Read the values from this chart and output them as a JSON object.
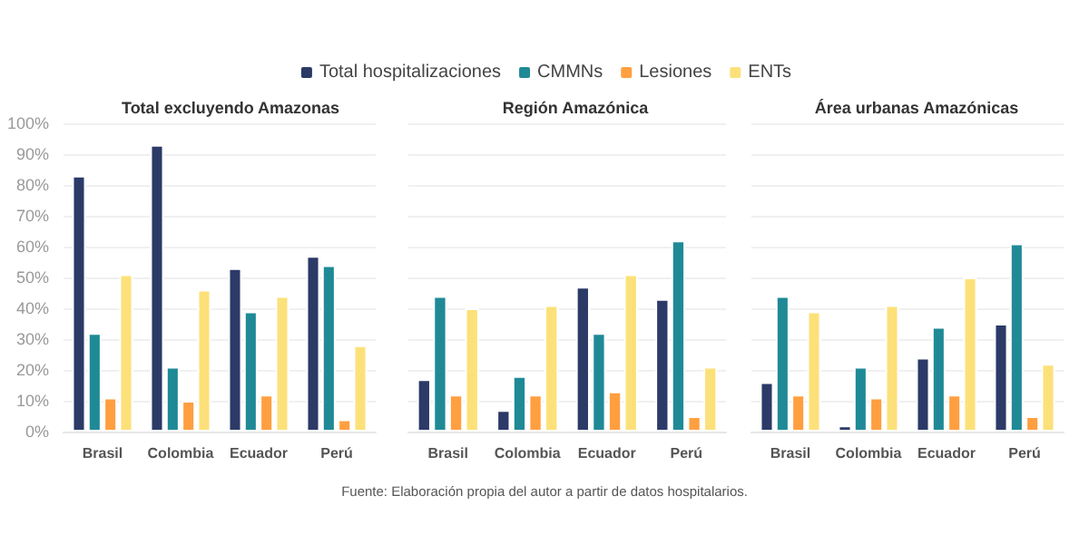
{
  "chart_data": [
    {
      "type": "bar",
      "title": "Total excluyendo Amazonas",
      "categories": [
        "Brasil",
        "Colombia",
        "Ecuador",
        "Perú"
      ],
      "series": [
        {
          "color": "#2b3a67",
          "values": [
            83,
            93,
            53,
            57
          ]
        },
        {
          "color": "#1f8a96",
          "values": [
            32,
            21,
            39,
            54
          ]
        },
        {
          "color": "#ff9f40",
          "values": [
            11,
            10,
            12,
            4
          ]
        },
        {
          "color": "#fce17a",
          "values": [
            51,
            46,
            44,
            28
          ]
        }
      ],
      "ylim": [
        0,
        100
      ],
      "yticks": [
        {
          "value": 0,
          "label": "0%"
        },
        {
          "value": 10,
          "label": "10%"
        },
        {
          "value": 20,
          "label": "20%"
        },
        {
          "value": 30,
          "label": "30%"
        },
        {
          "value": 40,
          "label": "40%"
        },
        {
          "value": 50,
          "label": "50%"
        },
        {
          "value": 60,
          "label": "60%"
        },
        {
          "value": 70,
          "label": "70%"
        },
        {
          "value": 80,
          "label": "80%"
        },
        {
          "value": 90,
          "label": "90%"
        },
        {
          "value": 100,
          "label": "100%"
        }
      ],
      "grid": "y"
    },
    {
      "type": "bar",
      "title": "Región Amazónica",
      "categories": [
        "Brasil",
        "Colombia",
        "Ecuador",
        "Perú"
      ],
      "series": [
        {
          "name": "Total hospitalizaciones",
          "color": "#2b3a67",
          "values": [
            17,
            7,
            47,
            43
          ]
        },
        {
          "name": "CMMNs",
          "color": "#1f8a96",
          "values": [
            44,
            18,
            32,
            62
          ]
        },
        {
          "name": "Lesiones",
          "color": "#ff9f40",
          "values": [
            12,
            12,
            13,
            5
          ]
        },
        {
          "name": "ENTs",
          "color": "#fce17a",
          "values": [
            40,
            41,
            51,
            21
          ]
        }
      ],
      "ylim": [
        0,
        100
      ],
      "yticks": [
        0,
        10,
        20,
        30,
        40,
        50,
        60,
        70,
        80,
        90,
        100
      ],
      "grid": "y",
      "tick_labels": "x",
      "legend": "top",
      "annotations": [
        "Fuente: Elaboración propia del autor a partir de datos hospitalarios."
      ]
    },
    {
      "type": "bar",
      "title": "Área urbanas Amazónicas",
      "categories": [
        "Brasil",
        "Colombia",
        "Ecuador",
        "Perú"
      ],
      "series": [
        {
          "color": "#2b3a67",
          "values": [
            16,
            2,
            24,
            35
          ]
        },
        {
          "color": "#1f8a96",
          "values": [
            44,
            21,
            34,
            61
          ]
        },
        {
          "color": "#ff9f40",
          "values": [
            12,
            11,
            12,
            5
          ]
        },
        {
          "color": "#fce17a",
          "values": [
            39,
            41,
            50,
            22
          ]
        }
      ],
      "ylim": [
        0,
        100
      ],
      "yticks": [
        0,
        10,
        20,
        30,
        40,
        50,
        60,
        70,
        80,
        90,
        100
      ],
      "grid": "y",
      "tick_labels": "x"
    }
  ]
}
